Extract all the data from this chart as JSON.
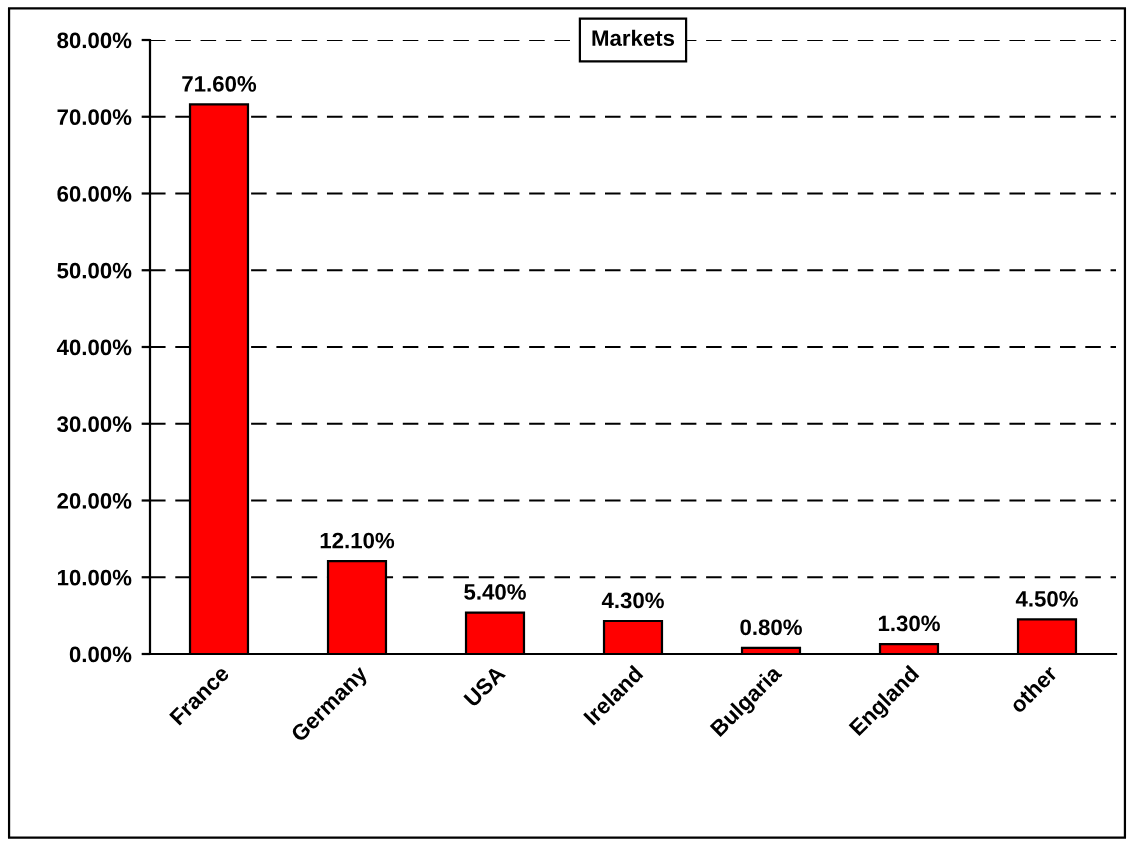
{
  "chart_data": {
    "type": "bar",
    "title": "Markets",
    "categories": [
      "France",
      "Germany",
      "USA",
      "Ireland",
      "Bulgaria",
      "England",
      "other"
    ],
    "values": [
      71.6,
      12.1,
      5.4,
      4.3,
      0.8,
      1.3,
      4.5
    ],
    "color": "#ff0000",
    "value_labels": [
      "71.60%",
      "12.10%",
      "5.40%",
      "4.30%",
      "0.80%",
      "1.30%",
      "4.50%"
    ],
    "ylim": [
      0,
      80
    ],
    "yticks": [
      {
        "value": 0,
        "label": "0.00%"
      },
      {
        "value": 10,
        "label": "10.00%"
      },
      {
        "value": 20,
        "label": "20.00%"
      },
      {
        "value": 30,
        "label": "30.00%"
      },
      {
        "value": 40,
        "label": "40.00%"
      },
      {
        "value": 50,
        "label": "50.00%"
      },
      {
        "value": 60,
        "label": "60.00%"
      },
      {
        "value": 70,
        "label": "70.00%"
      },
      {
        "value": 80,
        "label": "80.00%"
      }
    ],
    "grid": "y",
    "line_style": "dashed"
  }
}
